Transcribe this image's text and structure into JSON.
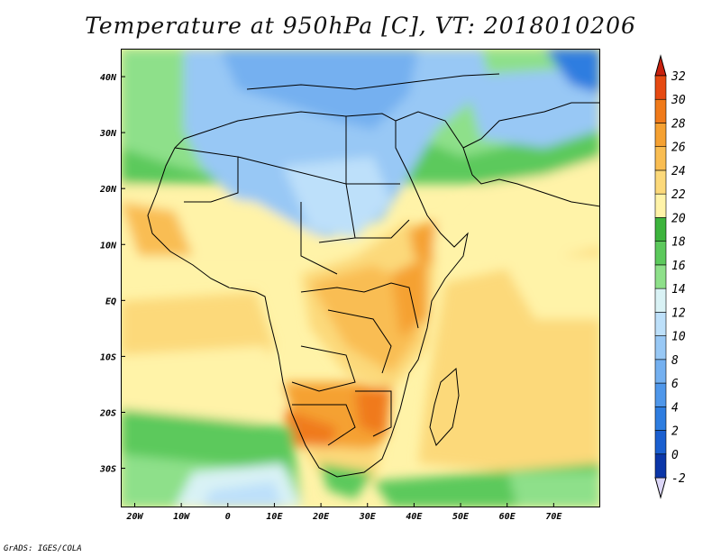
{
  "title": "Temperature at 950hPa [C], VT: 2018010206",
  "credit": "GrADS: IGES/COLA",
  "map": {
    "lon_range": [
      -23,
      80
    ],
    "lat_range": [
      -37,
      45
    ],
    "lon_ticks": [
      {
        "lon": -20,
        "label": "20W"
      },
      {
        "lon": -10,
        "label": "10W"
      },
      {
        "lon": 0,
        "label": "0"
      },
      {
        "lon": 10,
        "label": "10E"
      },
      {
        "lon": 20,
        "label": "20E"
      },
      {
        "lon": 30,
        "label": "30E"
      },
      {
        "lon": 40,
        "label": "40E"
      },
      {
        "lon": 50,
        "label": "50E"
      },
      {
        "lon": 60,
        "label": "60E"
      },
      {
        "lon": 70,
        "label": "70E"
      }
    ],
    "lat_ticks": [
      {
        "lat": 40,
        "label": "40N"
      },
      {
        "lat": 30,
        "label": "30N"
      },
      {
        "lat": 20,
        "label": "20N"
      },
      {
        "lat": 10,
        "label": "10N"
      },
      {
        "lat": 0,
        "label": "EQ"
      },
      {
        "lat": -10,
        "label": "10S"
      },
      {
        "lat": -20,
        "label": "20S"
      },
      {
        "lat": -30,
        "label": "30S"
      }
    ]
  },
  "colorbar": {
    "levels": [
      {
        "label": "-2",
        "color": "#0a1a6b"
      },
      {
        "label": "0",
        "color": "#0b36a8"
      },
      {
        "label": "2",
        "color": "#1a5fd0"
      },
      {
        "label": "4",
        "color": "#2e7de0"
      },
      {
        "label": "6",
        "color": "#4f97ea"
      },
      {
        "label": "8",
        "color": "#74b0f0"
      },
      {
        "label": "10",
        "color": "#98c8f5"
      },
      {
        "label": "12",
        "color": "#bde0fa"
      },
      {
        "label": "14",
        "color": "#d9f2f5"
      },
      {
        "label": "16",
        "color": "#8ee08a"
      },
      {
        "label": "18",
        "color": "#5cc95c"
      },
      {
        "label": "20",
        "color": "#3db43d"
      },
      {
        "label": "22",
        "color": "#fff3a8"
      },
      {
        "label": "24",
        "color": "#fcd97a"
      },
      {
        "label": "26",
        "color": "#f9bd52"
      },
      {
        "label": "28",
        "color": "#f5a132"
      },
      {
        "label": "30",
        "color": "#f07a1a"
      },
      {
        "label": "32",
        "color": "#e64a12"
      }
    ],
    "over_color": "#c8210e",
    "under_color": "#dcd6f7"
  }
}
